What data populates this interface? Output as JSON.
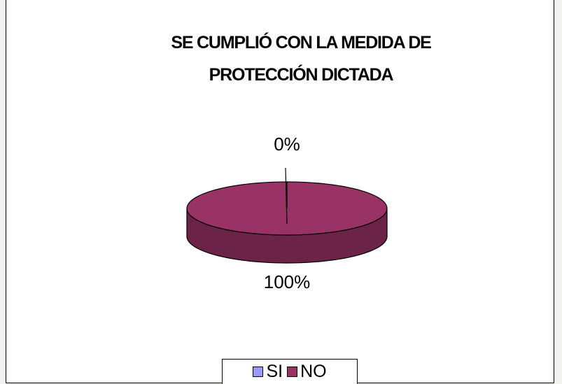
{
  "chart_data": {
    "type": "pie",
    "title": "SE CUMPLIÓ CON LA MEDIDA DE PROTECCIÓN DICTADA",
    "categories": [
      "SI",
      "NO"
    ],
    "values": [
      0,
      100
    ],
    "value_labels": [
      "0%",
      "100%"
    ],
    "colors": [
      "#9999ff",
      "#993366"
    ],
    "legend": "bottom",
    "three_d": true
  }
}
